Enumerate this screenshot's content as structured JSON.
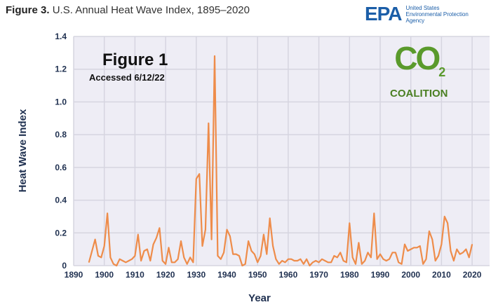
{
  "header": {
    "title_bold": "Figure 3.",
    "title_rest": "U.S. Annual Heat Wave Index, 1895–2020"
  },
  "epa_logo": {
    "mark": "EPA",
    "line1": "United States",
    "line2": "Environmental Protection",
    "line3": "Agency"
  },
  "annotation": {
    "main": "Figure 1",
    "sub": "Accessed 6/12/22"
  },
  "co2_logo": {
    "text": "CO",
    "subscript": "2",
    "word": "COALITION"
  },
  "colors": {
    "line": "#ee8c4a",
    "plot_bg": "#eeedf5",
    "grid": "#d6d5e0",
    "axis_text": "#1f3050"
  },
  "chart_data": {
    "type": "line",
    "title": "U.S. Annual Heat Wave Index, 1895–2020",
    "xlabel": "Year",
    "ylabel": "Heat Wave Index",
    "xlim": [
      1890,
      2020
    ],
    "ylim": [
      0,
      1.4
    ],
    "grid": true,
    "xticks": [
      "1890",
      "1900",
      "1910",
      "1920",
      "1930",
      "1940",
      "1950",
      "1960",
      "1970",
      "1980",
      "1990",
      "2000",
      "2010",
      "2020"
    ],
    "yticks": [
      "0",
      "0.2",
      "0.4",
      "0.6",
      "0.8",
      "1.0",
      "1.2",
      "1.4"
    ],
    "x_start": 1895,
    "values": [
      0.02,
      0.09,
      0.16,
      0.06,
      0.05,
      0.12,
      0.32,
      0.05,
      0.01,
      0.0,
      0.04,
      0.03,
      0.02,
      0.03,
      0.04,
      0.06,
      0.19,
      0.03,
      0.09,
      0.1,
      0.03,
      0.13,
      0.17,
      0.23,
      0.03,
      0.01,
      0.11,
      0.02,
      0.02,
      0.04,
      0.15,
      0.05,
      0.01,
      0.05,
      0.02,
      0.53,
      0.56,
      0.12,
      0.22,
      0.87,
      0.16,
      1.28,
      0.06,
      0.04,
      0.08,
      0.22,
      0.18,
      0.07,
      0.07,
      0.06,
      0.0,
      0.01,
      0.15,
      0.09,
      0.07,
      0.02,
      0.06,
      0.19,
      0.07,
      0.29,
      0.12,
      0.04,
      0.01,
      0.03,
      0.02,
      0.04,
      0.04,
      0.03,
      0.03,
      0.04,
      0.01,
      0.04,
      0.0,
      0.02,
      0.03,
      0.02,
      0.04,
      0.03,
      0.02,
      0.02,
      0.06,
      0.05,
      0.08,
      0.03,
      0.02,
      0.26,
      0.05,
      0.01,
      0.14,
      0.01,
      0.03,
      0.08,
      0.05,
      0.32,
      0.04,
      0.07,
      0.04,
      0.03,
      0.04,
      0.08,
      0.08,
      0.02,
      0.01,
      0.13,
      0.09,
      0.1,
      0.11,
      0.11,
      0.12,
      0.01,
      0.04,
      0.21,
      0.16,
      0.03,
      0.06,
      0.13,
      0.3,
      0.26,
      0.09,
      0.03,
      0.1,
      0.07,
      0.08,
      0.1,
      0.05,
      0.13
    ]
  }
}
